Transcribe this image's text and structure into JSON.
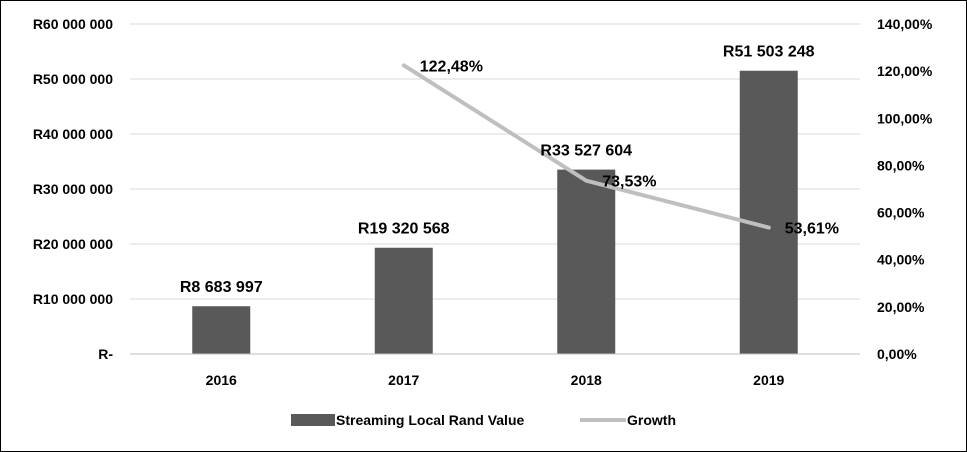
{
  "chart_data": {
    "type": "bar",
    "categories": [
      "2016",
      "2017",
      "2018",
      "2019"
    ],
    "series": [
      {
        "name": "Streaming Local Rand Value",
        "kind": "bar",
        "axis": "left",
        "values": [
          8683997,
          19320568,
          33527604,
          51503248
        ],
        "labels": [
          "R8 683 997",
          "R19 320 568",
          "R33 527 604",
          "R51 503 248"
        ]
      },
      {
        "name": "Growth",
        "kind": "line",
        "axis": "right",
        "values": [
          null,
          122.48,
          73.53,
          53.61
        ],
        "labels": [
          "",
          "122,48%",
          "73,53%",
          "53,61%"
        ]
      }
    ],
    "y_left": {
      "range": [
        0,
        60000000
      ],
      "ticks": [
        0,
        10000000,
        20000000,
        30000000,
        40000000,
        50000000,
        60000000
      ],
      "tick_labels": [
        "R-",
        "R10 000 000",
        "R20 000 000",
        "R30 000 000",
        "R40 000 000",
        "R50 000 000",
        "R60 000 000"
      ]
    },
    "y_right": {
      "range": [
        0,
        140
      ],
      "ticks": [
        0,
        20,
        40,
        60,
        80,
        100,
        120,
        140
      ],
      "tick_labels": [
        "0,00%",
        "20,00%",
        "40,00%",
        "60,00%",
        "80,00%",
        "100,00%",
        "120,00%",
        "140,00%"
      ]
    },
    "grid": true,
    "legend": {
      "position": "bottom",
      "entries": [
        "Streaming Local Rand Value",
        "Growth"
      ]
    },
    "colors": {
      "bar": "#595959",
      "line": "#bfbfbf",
      "grid": "#d9d9d9",
      "axis": "#bfbfbf"
    }
  }
}
